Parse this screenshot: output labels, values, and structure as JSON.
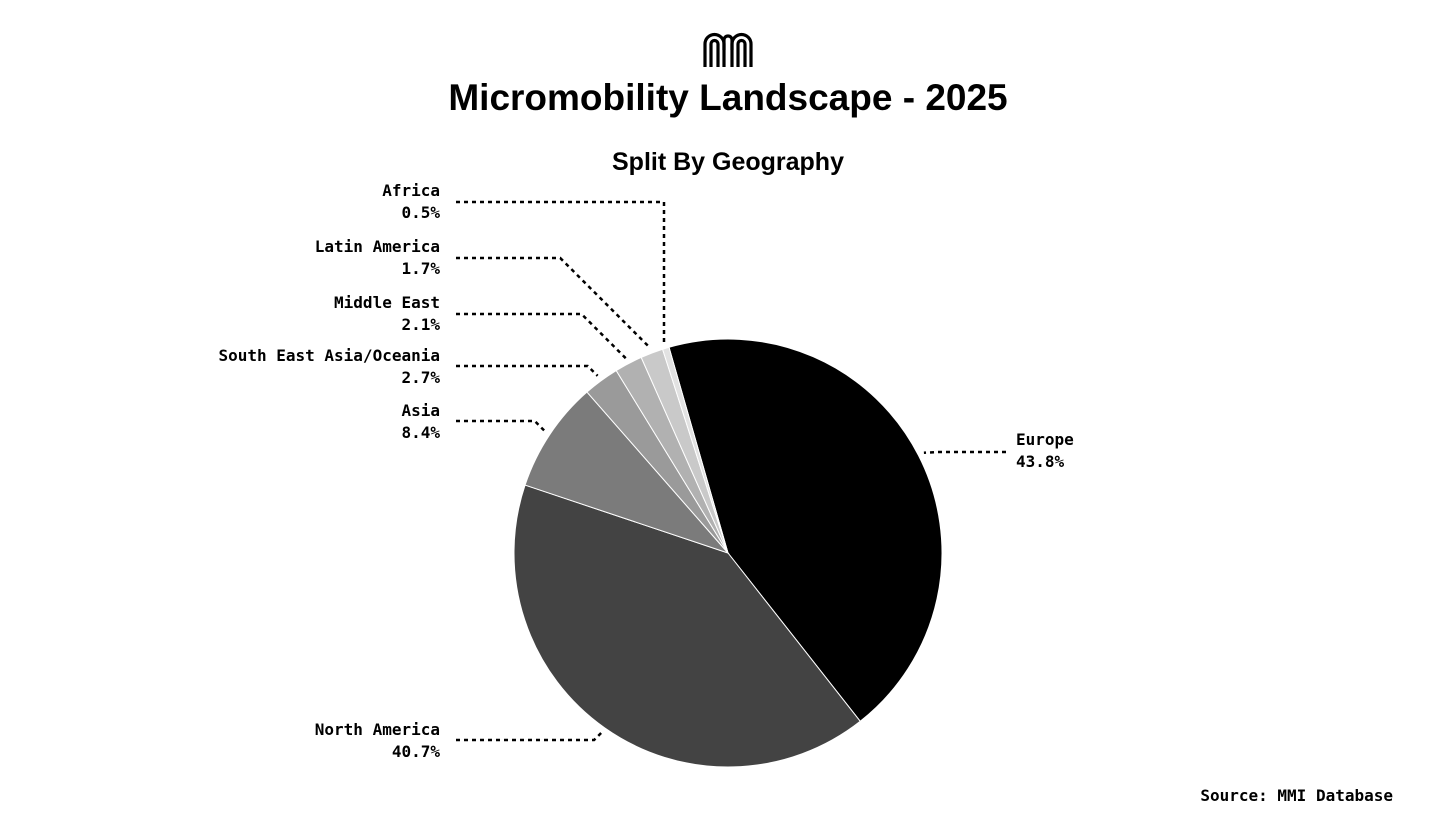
{
  "brand": {
    "logo_icon": "mmi-logo-icon"
  },
  "chart_data": {
    "type": "pie",
    "title": "Micromobility Landscape - 2025",
    "subtitle": "Split By Geography",
    "source": "Source: MMI Database",
    "slices": [
      {
        "label": "Europe",
        "value_text": "43.8%",
        "value": 43.8,
        "color": "#000000"
      },
      {
        "label": "North America",
        "value_text": "40.7%",
        "value": 40.7,
        "color": "#434343"
      },
      {
        "label": "Asia",
        "value_text": "8.4%",
        "value": 8.4,
        "color": "#7b7b7b"
      },
      {
        "label": "South East Asia/Oceania",
        "value_text": "2.7%",
        "value": 2.7,
        "color": "#9a9a9a"
      },
      {
        "label": "Middle East",
        "value_text": "2.1%",
        "value": 2.1,
        "color": "#b1b1b1"
      },
      {
        "label": "Latin America",
        "value_text": "1.7%",
        "value": 1.7,
        "color": "#c9c9c9"
      },
      {
        "label": "Africa",
        "value_text": "0.5%",
        "value": 0.5,
        "color": "#e2e2e2"
      }
    ]
  }
}
